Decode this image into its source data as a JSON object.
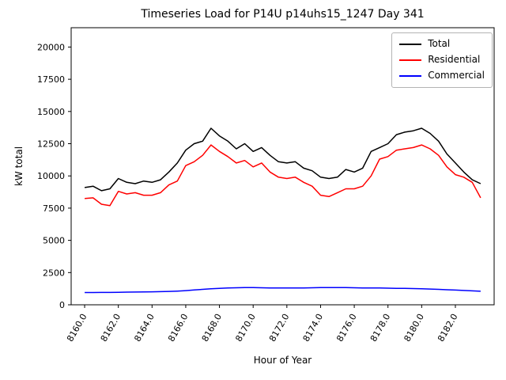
{
  "chart_data": {
    "type": "line",
    "title": "Timeseries Load for P14U p14uhs15_1247  Day 341",
    "xlabel": "Hour of Year",
    "ylabel": "kW total",
    "x": [
      8160.0,
      8160.5,
      8161.0,
      8161.5,
      8162.0,
      8162.5,
      8163.0,
      8163.5,
      8164.0,
      8164.5,
      8165.0,
      8165.5,
      8166.0,
      8166.5,
      8167.0,
      8167.5,
      8168.0,
      8168.5,
      8169.0,
      8169.5,
      8170.0,
      8170.5,
      8171.0,
      8171.5,
      8172.0,
      8172.5,
      8173.0,
      8173.5,
      8174.0,
      8174.5,
      8175.0,
      8175.5,
      8176.0,
      8176.5,
      8177.0,
      8177.5,
      8178.0,
      8178.5,
      8179.0,
      8179.5,
      8180.0,
      8180.5,
      8181.0,
      8181.5,
      8182.0,
      8182.5,
      8183.0,
      8183.5
    ],
    "series": [
      {
        "name": "Total",
        "color": "#000000",
        "values": [
          9100,
          9200,
          8850,
          9000,
          9800,
          9500,
          9400,
          9600,
          9500,
          9700,
          10300,
          11000,
          12000,
          12500,
          12700,
          13700,
          13100,
          12700,
          12100,
          12500,
          11900,
          12200,
          11600,
          11100,
          11000,
          11100,
          10600,
          10400,
          9900,
          9800,
          9900,
          10500,
          10300,
          10600,
          11900,
          12200,
          12500,
          13200,
          13400,
          13500,
          13700,
          13300,
          12700,
          11700,
          11000,
          10300,
          9700,
          9400
        ]
      },
      {
        "name": "Residential",
        "color": "#ff0000",
        "values": [
          8250,
          8300,
          7800,
          7700,
          8800,
          8600,
          8700,
          8500,
          8500,
          8700,
          9300,
          9600,
          10800,
          11100,
          11600,
          12400,
          11900,
          11500,
          11000,
          11200,
          10700,
          11000,
          10300,
          9900,
          9800,
          9900,
          9500,
          9200,
          8500,
          8400,
          8700,
          9000,
          9000,
          9200,
          10000,
          11300,
          11500,
          12000,
          12100,
          12200,
          12400,
          12100,
          11600,
          10700,
          10100,
          9900,
          9500,
          8300
        ]
      },
      {
        "name": "Commercial",
        "color": "#0000ff",
        "values": [
          950,
          950,
          960,
          960,
          970,
          980,
          990,
          1000,
          1010,
          1020,
          1040,
          1060,
          1100,
          1150,
          1200,
          1250,
          1280,
          1300,
          1320,
          1330,
          1330,
          1320,
          1310,
          1300,
          1300,
          1300,
          1310,
          1320,
          1330,
          1340,
          1340,
          1330,
          1320,
          1310,
          1300,
          1300,
          1290,
          1280,
          1270,
          1260,
          1240,
          1220,
          1200,
          1170,
          1140,
          1110,
          1080,
          1050
        ]
      }
    ],
    "xticks": [
      8160,
      8162,
      8164,
      8166,
      8168,
      8170,
      8172,
      8174,
      8176,
      8178,
      8180,
      8182
    ],
    "xtick_labels": [
      "8160.0",
      "8162.0",
      "8164.0",
      "8166.0",
      "8168.0",
      "8170.0",
      "8172.0",
      "8174.0",
      "8176.0",
      "8178.0",
      "8180.0",
      "8182.0"
    ],
    "yticks": [
      0,
      2500,
      5000,
      7500,
      10000,
      12500,
      15000,
      17500,
      20000
    ],
    "ytick_labels": [
      "0",
      "2500",
      "5000",
      "7500",
      "10000",
      "12500",
      "15000",
      "17500",
      "20000"
    ],
    "xlim": [
      8159.2,
      8184.3
    ],
    "ylim": [
      0,
      21500
    ],
    "grid": false,
    "legend_position": "upper right"
  }
}
